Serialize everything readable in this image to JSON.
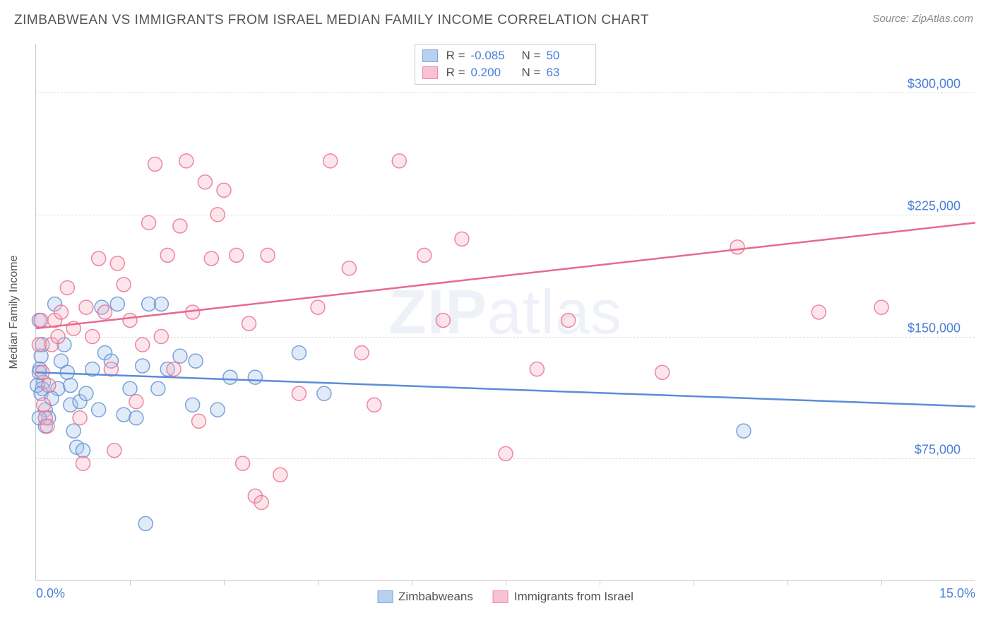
{
  "header": {
    "title": "ZIMBABWEAN VS IMMIGRANTS FROM ISRAEL MEDIAN FAMILY INCOME CORRELATION CHART",
    "source_label": "Source:",
    "source_name": "ZipAtlas.com"
  },
  "chart": {
    "type": "scatter",
    "yaxis_label": "Median Family Income",
    "background_color": "#ffffff",
    "grid_color": "#dddddd",
    "axis_color": "#cccccc",
    "tick_label_color": "#4a7fd8",
    "axis_label_color": "#555555",
    "xlim": [
      0,
      15
    ],
    "ylim": [
      0,
      330000
    ],
    "ytick_step": 75000,
    "yticks": [
      {
        "v": 75000,
        "label": "$75,000"
      },
      {
        "v": 150000,
        "label": "$150,000"
      },
      {
        "v": 225000,
        "label": "$225,000"
      },
      {
        "v": 300000,
        "label": "$300,000"
      }
    ],
    "xticks_minor": [
      1.5,
      3.0,
      4.5,
      6.0,
      7.5,
      9.0,
      10.5,
      12.0,
      13.5
    ],
    "xtick_labels": [
      {
        "v": 0,
        "label": "0.0%"
      },
      {
        "v": 15,
        "label": "15.0%"
      }
    ],
    "marker_radius": 10,
    "marker_fill_opacity": 0.35,
    "marker_stroke_opacity": 0.8,
    "line_width": 2.5,
    "watermark": "ZIPatlas",
    "series": [
      {
        "id": "zimbabweans",
        "label": "Zimbabweans",
        "color": "#5b8dd6",
        "fill": "#a8c5ea",
        "R": "-0.085",
        "N": "50",
        "trend": {
          "y_at_x0": 128000,
          "y_at_xmax": 107000
        },
        "points": [
          [
            0.05,
            160000
          ],
          [
            0.1,
            145000
          ],
          [
            0.08,
            138000
          ],
          [
            0.06,
            130000
          ],
          [
            0.12,
            122000
          ],
          [
            0.1,
            118000
          ],
          [
            0.05,
            128000
          ],
          [
            0.15,
            105000
          ],
          [
            0.02,
            120000
          ],
          [
            0.08,
            115000
          ],
          [
            0.3,
            170000
          ],
          [
            0.35,
            118000
          ],
          [
            0.4,
            135000
          ],
          [
            0.5,
            128000
          ],
          [
            0.55,
            108000
          ],
          [
            0.6,
            92000
          ],
          [
            0.65,
            82000
          ],
          [
            0.7,
            110000
          ],
          [
            0.75,
            80000
          ],
          [
            0.8,
            115000
          ],
          [
            0.9,
            130000
          ],
          [
            1.0,
            105000
          ],
          [
            1.05,
            168000
          ],
          [
            1.1,
            140000
          ],
          [
            1.2,
            135000
          ],
          [
            1.3,
            170000
          ],
          [
            1.4,
            102000
          ],
          [
            1.5,
            118000
          ],
          [
            1.6,
            100000
          ],
          [
            1.7,
            132000
          ],
          [
            1.75,
            35000
          ],
          [
            1.8,
            170000
          ],
          [
            1.95,
            118000
          ],
          [
            2.0,
            170000
          ],
          [
            2.1,
            130000
          ],
          [
            2.3,
            138000
          ],
          [
            2.5,
            108000
          ],
          [
            2.55,
            135000
          ],
          [
            2.9,
            105000
          ],
          [
            3.1,
            125000
          ],
          [
            3.5,
            125000
          ],
          [
            4.2,
            140000
          ],
          [
            4.6,
            115000
          ],
          [
            0.15,
            95000
          ],
          [
            0.2,
            100000
          ],
          [
            0.25,
            112000
          ],
          [
            0.05,
            100000
          ],
          [
            0.45,
            145000
          ],
          [
            0.55,
            120000
          ],
          [
            11.3,
            92000
          ]
        ]
      },
      {
        "id": "israel",
        "label": "Immigrants from Israel",
        "color": "#e86a8f",
        "fill": "#f6b4c6",
        "R": "0.200",
        "N": "63",
        "trend": {
          "y_at_x0": 155000,
          "y_at_xmax": 220000
        },
        "points": [
          [
            0.05,
            145000
          ],
          [
            0.08,
            160000
          ],
          [
            0.1,
            128000
          ],
          [
            0.12,
            108000
          ],
          [
            0.15,
            100000
          ],
          [
            0.18,
            95000
          ],
          [
            0.2,
            120000
          ],
          [
            0.25,
            145000
          ],
          [
            0.3,
            160000
          ],
          [
            0.35,
            150000
          ],
          [
            0.4,
            165000
          ],
          [
            0.5,
            180000
          ],
          [
            0.6,
            155000
          ],
          [
            0.7,
            100000
          ],
          [
            0.75,
            72000
          ],
          [
            0.8,
            168000
          ],
          [
            0.9,
            150000
          ],
          [
            1.0,
            198000
          ],
          [
            1.1,
            165000
          ],
          [
            1.2,
            130000
          ],
          [
            1.25,
            80000
          ],
          [
            1.3,
            195000
          ],
          [
            1.4,
            182000
          ],
          [
            1.5,
            160000
          ],
          [
            1.6,
            110000
          ],
          [
            1.7,
            145000
          ],
          [
            1.8,
            220000
          ],
          [
            1.9,
            256000
          ],
          [
            2.0,
            150000
          ],
          [
            2.1,
            200000
          ],
          [
            2.2,
            130000
          ],
          [
            2.3,
            218000
          ],
          [
            2.4,
            258000
          ],
          [
            2.5,
            165000
          ],
          [
            2.6,
            98000
          ],
          [
            2.7,
            245000
          ],
          [
            2.8,
            198000
          ],
          [
            2.9,
            225000
          ],
          [
            3.0,
            240000
          ],
          [
            3.2,
            200000
          ],
          [
            3.3,
            72000
          ],
          [
            3.4,
            158000
          ],
          [
            3.5,
            52000
          ],
          [
            3.6,
            48000
          ],
          [
            3.7,
            200000
          ],
          [
            3.9,
            65000
          ],
          [
            4.2,
            115000
          ],
          [
            4.5,
            168000
          ],
          [
            4.7,
            258000
          ],
          [
            5.0,
            192000
          ],
          [
            5.2,
            140000
          ],
          [
            5.4,
            108000
          ],
          [
            5.8,
            258000
          ],
          [
            6.2,
            200000
          ],
          [
            6.5,
            160000
          ],
          [
            6.8,
            210000
          ],
          [
            7.5,
            78000
          ],
          [
            8.0,
            130000
          ],
          [
            8.5,
            160000
          ],
          [
            10.0,
            128000
          ],
          [
            11.2,
            205000
          ],
          [
            12.5,
            165000
          ],
          [
            13.5,
            168000
          ]
        ]
      }
    ]
  },
  "stats_legend": {
    "r_label": "R =",
    "n_label": "N ="
  }
}
